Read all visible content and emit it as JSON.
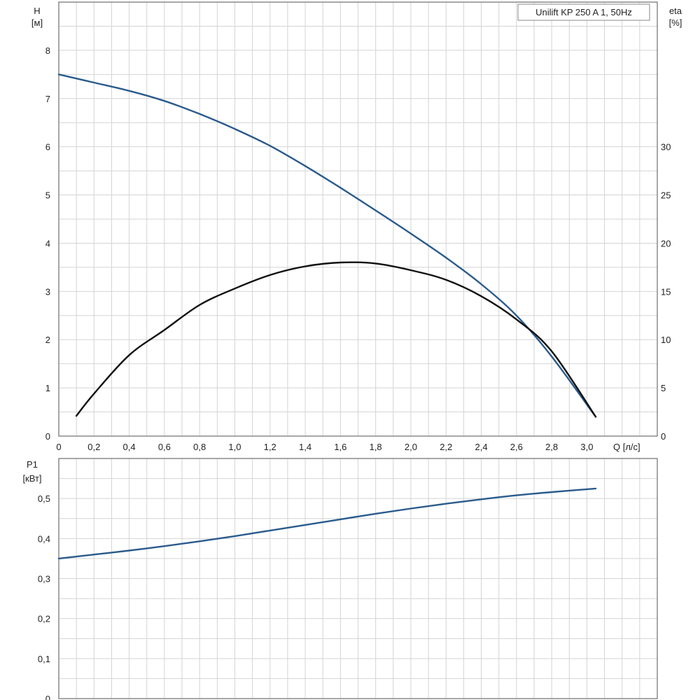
{
  "chart_data": [
    {
      "type": "line",
      "name": "head_efficiency",
      "title": "Unilift KP 250 A 1, 50Hz",
      "xlabel": "Q [л/с]",
      "ylabel_left_name": "H",
      "ylabel_left_unit": "[м]",
      "ylabel_right_name": "eta",
      "ylabel_right_unit": "[%]",
      "xlim": [
        0,
        3.4
      ],
      "ylim_left": [
        0,
        9
      ],
      "ylim_right": [
        0,
        45
      ],
      "x_ticks": [
        "0",
        "0,2",
        "0,4",
        "0,6",
        "0,8",
        "1,0",
        "1,2",
        "1,4",
        "1,6",
        "1,8",
        "2,0",
        "2,2",
        "2,4",
        "2,6",
        "2,8",
        "3,0"
      ],
      "y_left_ticks": [
        "0",
        "1",
        "2",
        "3",
        "4",
        "5",
        "6",
        "7",
        "8"
      ],
      "y_right_ticks": [
        "0",
        "5",
        "10",
        "15",
        "20",
        "25",
        "30"
      ],
      "grid": true,
      "colors": {
        "head": "#2a5b8c",
        "efficiency": "#111111"
      },
      "series": [
        {
          "key": "head",
          "axis": "left",
          "x": [
            0,
            0.2,
            0.4,
            0.6,
            0.8,
            1.0,
            1.2,
            1.4,
            1.6,
            1.8,
            2.0,
            2.2,
            2.4,
            2.6,
            2.8,
            3.05
          ],
          "y": [
            7.5,
            7.33,
            7.16,
            6.95,
            6.68,
            6.37,
            6.02,
            5.6,
            5.15,
            4.68,
            4.2,
            3.7,
            3.15,
            2.5,
            1.65,
            0.4
          ]
        },
        {
          "key": "efficiency",
          "axis": "right",
          "x": [
            0.1,
            0.2,
            0.4,
            0.6,
            0.8,
            1.0,
            1.2,
            1.4,
            1.6,
            1.8,
            2.0,
            2.2,
            2.4,
            2.6,
            2.8,
            3.05
          ],
          "y": [
            2.1,
            4.4,
            8.4,
            11.0,
            13.6,
            15.3,
            16.7,
            17.6,
            18.0,
            17.9,
            17.2,
            16.2,
            14.5,
            12.1,
            8.8,
            2.0
          ]
        }
      ]
    },
    {
      "type": "line",
      "name": "power",
      "xlabel": "",
      "ylabel_left_name": "P1",
      "ylabel_left_unit": "[кВт]",
      "xlim": [
        0,
        3.4
      ],
      "ylim": [
        0,
        0.6
      ],
      "y_ticks": [
        "0",
        "0,1",
        "0,2",
        "0,3",
        "0,4",
        "0,5"
      ],
      "grid": true,
      "colors": {
        "power": "#2a5b8c"
      },
      "series": [
        {
          "key": "power",
          "x": [
            0,
            0.2,
            0.4,
            0.6,
            0.8,
            1.0,
            1.2,
            1.4,
            1.6,
            1.8,
            2.0,
            2.2,
            2.4,
            2.6,
            2.8,
            3.05
          ],
          "y": [
            0.35,
            0.36,
            0.37,
            0.381,
            0.393,
            0.406,
            0.42,
            0.434,
            0.448,
            0.462,
            0.475,
            0.487,
            0.498,
            0.508,
            0.516,
            0.525
          ]
        }
      ]
    }
  ]
}
